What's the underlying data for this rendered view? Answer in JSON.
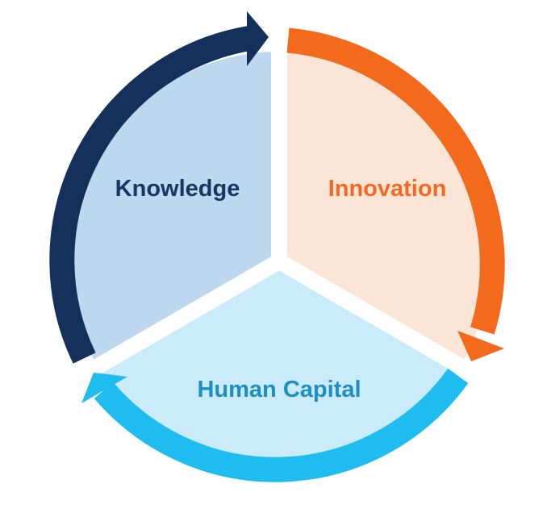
{
  "diagram": {
    "type": "cycle",
    "segments": [
      {
        "id": "knowledge",
        "label": "Knowledge",
        "label_color": "#1a3563",
        "fill_color": "#bdd7ee",
        "arrow_color": "#15305a"
      },
      {
        "id": "innovation",
        "label": "Innovation",
        "label_color": "#f26a21",
        "fill_color": "#fbe5d6",
        "arrow_color": "#f46a1d"
      },
      {
        "id": "human-capital",
        "label": "Human Capital",
        "label_color": "#1e8fc1",
        "fill_color": "#c9ebfa",
        "arrow_color": "#1ebcef"
      }
    ],
    "background_color": "#ffffff"
  }
}
